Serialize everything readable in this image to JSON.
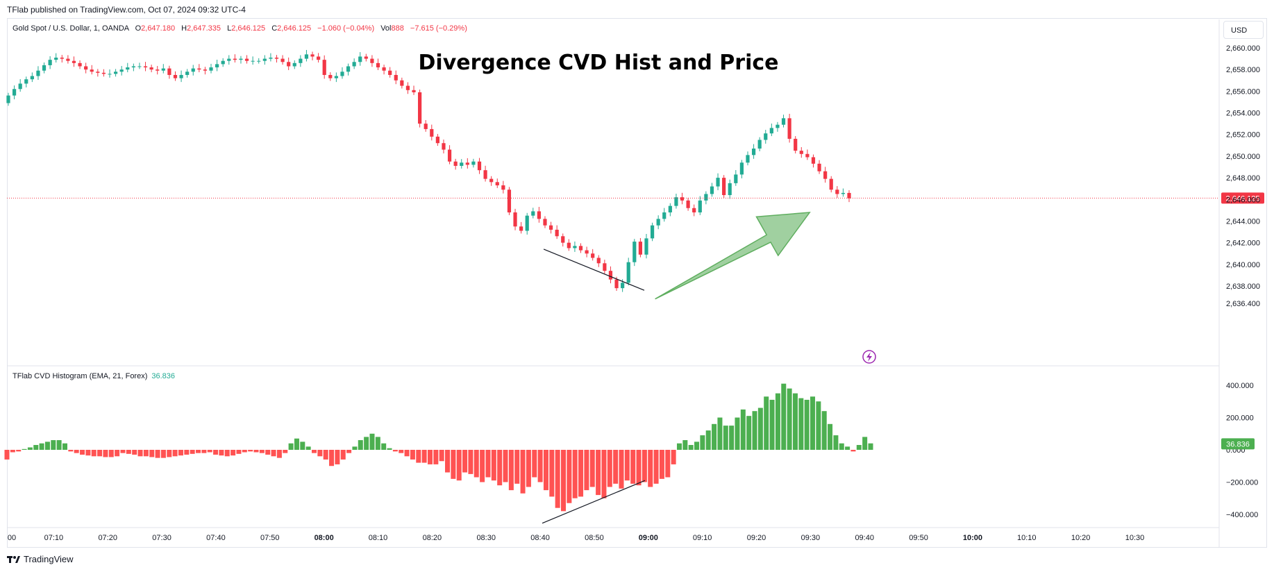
{
  "header": {
    "publisher": "TFlab published on TradingView.com, Oct 07, 2024 09:32 UTC-4"
  },
  "legend": {
    "symbol": "Gold Spot / U.S. Dollar, 1, OANDA",
    "o_label": "O",
    "o": "2,647.180",
    "h_label": "H",
    "h": "2,647.335",
    "l_label": "L",
    "l": "2,646.125",
    "c_label": "C",
    "c": "2,646.125",
    "change": "−1.060 (−0.04%)",
    "vol_label": "Vol",
    "vol": "888",
    "vol_change": "−7.615 (−0.29%)"
  },
  "indicator": {
    "name": "TFlab CVD Histogram (EMA, 21, Forex)",
    "value": "36.836"
  },
  "currency": "USD",
  "footer": {
    "brand": "TradingView"
  },
  "colors": {
    "up": "#22ab94",
    "down": "#f23645",
    "hist_up": "#4caf50",
    "hist_down": "#ff5252",
    "arrow": "#8fc88f"
  },
  "chart_data": [
    {
      "type": "candlestick",
      "title": "Divergence CVD Hist and Price",
      "price_axis_ticks": [
        "2,660.000",
        "2,658.000",
        "2,656.000",
        "2,654.000",
        "2,652.000",
        "2,650.000",
        "2,648.000",
        "2,646.000",
        "2,644.000",
        "2,642.000",
        "2,640.000",
        "2,638.000",
        "2,636.400"
      ],
      "y_tick_values": [
        2660,
        2658,
        2656,
        2654,
        2652,
        2650,
        2648,
        2646,
        2644,
        2642,
        2640,
        2638,
        2636.4
      ],
      "last_price": 2646.125,
      "last_price_label": "2,646.125",
      "close_series": [
        2655.6,
        2656.2,
        2656.7,
        2657.1,
        2657.4,
        2657.9,
        2658.4,
        2658.9,
        2659.1,
        2659.0,
        2658.8,
        2658.6,
        2658.3,
        2658.0,
        2657.8,
        2657.7,
        2657.6,
        2657.6,
        2657.8,
        2658.0,
        2658.2,
        2658.3,
        2658.3,
        2658.2,
        2658.0,
        2657.9,
        2658.1,
        2657.5,
        2657.2,
        2657.5,
        2657.8,
        2658.1,
        2658.0,
        2657.9,
        2658.2,
        2658.5,
        2658.8,
        2659.0,
        2658.9,
        2659.0,
        2658.8,
        2658.8,
        2658.8,
        2659.0,
        2659.1,
        2659.0,
        2658.7,
        2658.3,
        2658.6,
        2659.0,
        2659.4,
        2659.2,
        2658.9,
        2657.5,
        2657.2,
        2657.4,
        2657.8,
        2658.3,
        2658.7,
        2659.2,
        2659.0,
        2658.6,
        2658.2,
        2657.9,
        2657.5,
        2657.0,
        2656.5,
        2656.1,
        2655.9,
        2653.0,
        2652.5,
        2651.8,
        2651.2,
        2650.6,
        2649.5,
        2649.1,
        2649.4,
        2649.2,
        2649.5,
        2648.7,
        2647.9,
        2647.6,
        2647.3,
        2646.9,
        2644.8,
        2643.5,
        2643.1,
        2644.5,
        2644.9,
        2644.2,
        2643.6,
        2643.2,
        2642.6,
        2642.0,
        2641.5,
        2641.7,
        2641.3,
        2641.0,
        2640.6,
        2640.1,
        2639.4,
        2638.6,
        2637.8,
        2638.3,
        2640.2,
        2642.1,
        2640.9,
        2642.4,
        2643.6,
        2644.2,
        2644.8,
        2645.4,
        2646.2,
        2645.9,
        2645.2,
        2644.8,
        2645.9,
        2646.5,
        2647.2,
        2648.0,
        2646.4,
        2647.5,
        2648.3,
        2649.4,
        2650.1,
        2650.7,
        2651.5,
        2652.1,
        2652.6,
        2652.9,
        2653.5,
        2651.6,
        2650.5,
        2650.2,
        2649.9,
        2649.3,
        2648.6,
        2647.9,
        2646.9,
        2646.5,
        2646.6,
        2646.1
      ],
      "annotations": [
        {
          "type": "trendline",
          "from_time": "08:40",
          "from_price": 2641.4,
          "to_time": "08:59",
          "to_price": 2637.6
        },
        {
          "type": "arrow",
          "direction": "up-right",
          "from_time": "09:01",
          "from_price": 2636.8,
          "to_time": "09:26",
          "to_price": 2644.8
        }
      ]
    },
    {
      "type": "histogram",
      "title": "",
      "y_ticks": [
        "400.000",
        "200.000",
        "0.000",
        "−200.000",
        "−400.000"
      ],
      "y_tick_values": [
        400,
        200,
        0,
        -200,
        -400
      ],
      "last_value": 36.836,
      "last_value_label": "36.836",
      "values": [
        -60,
        -15,
        -10,
        5,
        15,
        30,
        40,
        50,
        60,
        60,
        40,
        -10,
        -20,
        -30,
        -35,
        -40,
        -40,
        -45,
        -45,
        -40,
        -20,
        -25,
        -30,
        -40,
        -40,
        -45,
        -50,
        -50,
        -45,
        -40,
        -35,
        -30,
        -25,
        -20,
        -20,
        -15,
        -30,
        -35,
        -40,
        -35,
        -25,
        -15,
        -10,
        -15,
        -20,
        -30,
        -40,
        -50,
        -20,
        40,
        70,
        50,
        20,
        -20,
        -40,
        -60,
        -100,
        -90,
        -60,
        -20,
        20,
        60,
        80,
        100,
        80,
        40,
        10,
        -10,
        -20,
        -40,
        -60,
        -80,
        -80,
        -90,
        -90,
        -70,
        -140,
        -180,
        -190,
        -140,
        -150,
        -170,
        -200,
        -170,
        -190,
        -220,
        -200,
        -250,
        -210,
        -270,
        -230,
        -170,
        -200,
        -250,
        -290,
        -360,
        -380,
        -330,
        -300,
        -290,
        -250,
        -230,
        -280,
        -300,
        -230,
        -210,
        -240,
        -190,
        -210,
        -220,
        -200,
        -230,
        -210,
        -180,
        -170,
        -90,
        40,
        60,
        30,
        50,
        90,
        120,
        160,
        200,
        150,
        150,
        200,
        250,
        210,
        240,
        260,
        330,
        310,
        350,
        410,
        380,
        350,
        320,
        310,
        330,
        300,
        240,
        160,
        90,
        40,
        20,
        -10,
        30,
        80,
        40
      ],
      "divergence_line": {
        "from_time": "08:40",
        "from_value": -390,
        "to_time": "08:59",
        "to_value": -190
      }
    }
  ],
  "time_axis": {
    "labels": [
      "00",
      "07:10",
      "07:20",
      "07:30",
      "07:40",
      "07:50",
      "08:00",
      "08:10",
      "08:20",
      "08:30",
      "08:40",
      "08:50",
      "09:00",
      "09:10",
      "09:20",
      "09:30",
      "09:40",
      "09:50",
      "10:00",
      "10:10",
      "10:20",
      "10:30"
    ],
    "bold_labels": [
      "08:00",
      "09:00",
      "10:00"
    ]
  },
  "icons": {
    "flash": "lightning-badge-icon",
    "logo": "tradingview-logo-icon"
  }
}
